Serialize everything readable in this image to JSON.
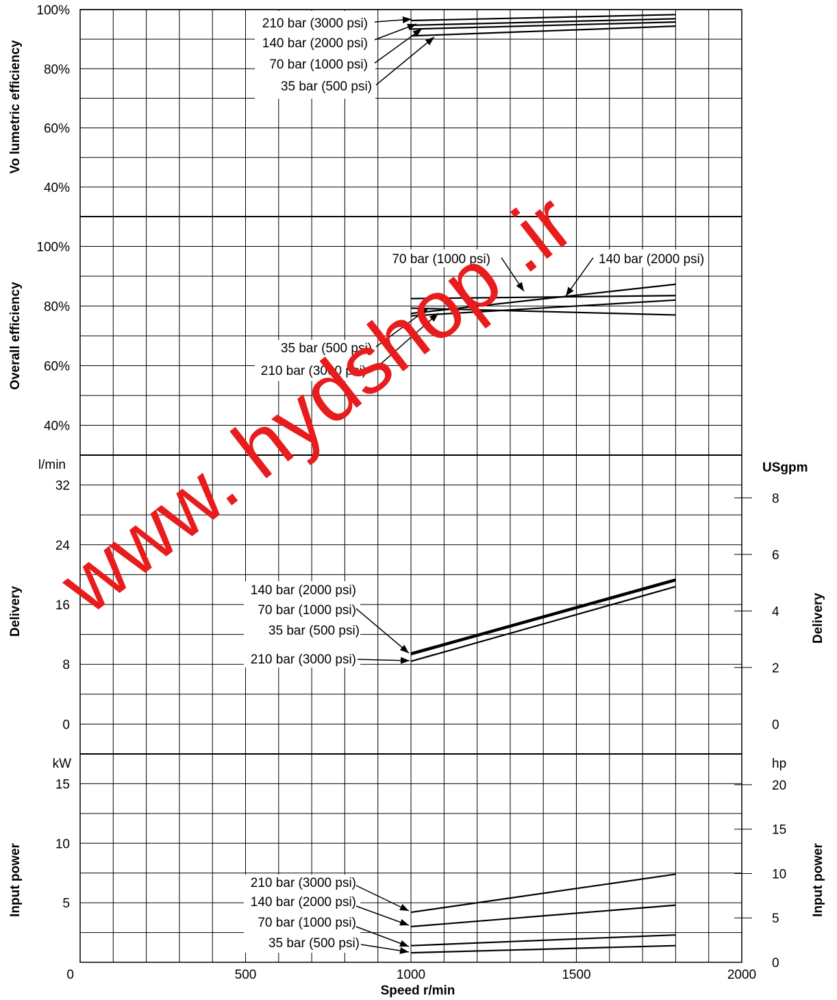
{
  "chart_data": [
    {
      "type": "line",
      "ylabel": "Vo lumetric efficiency",
      "xlim": [
        0,
        2000
      ],
      "ylim": [
        30,
        100
      ],
      "y_ticks": [
        "40%",
        "60%",
        "80%",
        "100%"
      ],
      "series": [
        {
          "name": "210 bar (3000 psi)",
          "x": [
            1000,
            1800
          ],
          "y": [
            96.3,
            98.3
          ]
        },
        {
          "name": "140 bar (2000 psi)",
          "x": [
            1000,
            1800
          ],
          "y": [
            94.7,
            96.9
          ]
        },
        {
          "name": "70 bar (1000 psi)",
          "x": [
            1000,
            1800
          ],
          "y": [
            93.4,
            95.8
          ]
        },
        {
          "name": "35 bar (500 psi)",
          "x": [
            1000,
            1800
          ],
          "y": [
            91.1,
            94.4
          ]
        }
      ]
    },
    {
      "type": "line",
      "ylabel": "Overall efficiency",
      "xlim": [
        0,
        2000
      ],
      "ylim": [
        30,
        110
      ],
      "y_ticks": [
        "40%",
        "60%",
        "80%",
        "100%"
      ],
      "series": [
        {
          "name": "70 bar (1000 psi)",
          "x": [
            1000,
            1800
          ],
          "y": [
            82.5,
            83.5
          ]
        },
        {
          "name": "140 bar (2000 psi)",
          "x": [
            1000,
            1800
          ],
          "y": [
            77.5,
            87.3
          ]
        },
        {
          "name": "35 bar (500 psi)",
          "x": [
            1000,
            1800
          ],
          "y": [
            79.3,
            77.0
          ]
        },
        {
          "name": "210 bar (3000 psi)",
          "x": [
            1000,
            1800
          ],
          "y": [
            76.7,
            82.0
          ]
        }
      ]
    },
    {
      "type": "line",
      "ylabel": "Delivery",
      "ylabel_right": "Delivery",
      "unit_left": "l/min",
      "unit_right": "USgpm",
      "xlim": [
        0,
        2000
      ],
      "ylim": [
        -4,
        36
      ],
      "y_ticks": [
        "0",
        "8",
        "16",
        "24",
        "32"
      ],
      "y2_ticks": [
        "0",
        "2",
        "4",
        "6",
        "8"
      ],
      "series": [
        {
          "name": "140 bar (2000 psi) / 70 bar (1000 psi) / 35 bar (500 psi)",
          "x": [
            1000,
            1800
          ],
          "y": [
            9.4,
            19.3
          ]
        },
        {
          "name": "210 bar (3000 psi)",
          "x": [
            1000,
            1800
          ],
          "y": [
            8.4,
            18.4
          ]
        }
      ]
    },
    {
      "type": "line",
      "ylabel": "Input power",
      "ylabel_right": "Input power",
      "unit_left": "kW",
      "unit_right": "hp",
      "xlabel": "Speed r/min",
      "xlim": [
        0,
        2000
      ],
      "ylim": [
        0,
        17.5
      ],
      "y_ticks": [
        "5",
        "10",
        "15"
      ],
      "y2_ticks": [
        "0",
        "5",
        "10",
        "15",
        "20"
      ],
      "x_ticks": [
        "0",
        "500",
        "1000",
        "1500",
        "2000"
      ],
      "series": [
        {
          "name": "210 bar (3000 psi)",
          "x": [
            1000,
            1800
          ],
          "y": [
            4.2,
            7.4
          ]
        },
        {
          "name": "140 bar (2000 psi)",
          "x": [
            1000,
            1800
          ],
          "y": [
            3.0,
            4.8
          ]
        },
        {
          "name": "70 bar (1000 psi)",
          "x": [
            1000,
            1800
          ],
          "y": [
            1.4,
            2.3
          ]
        },
        {
          "name": "35 bar (500 psi)",
          "x": [
            1000,
            1800
          ],
          "y": [
            0.8,
            1.4
          ]
        }
      ]
    }
  ],
  "watermark": "www. hydshop .ir",
  "watermark_color": "#e81c1c"
}
